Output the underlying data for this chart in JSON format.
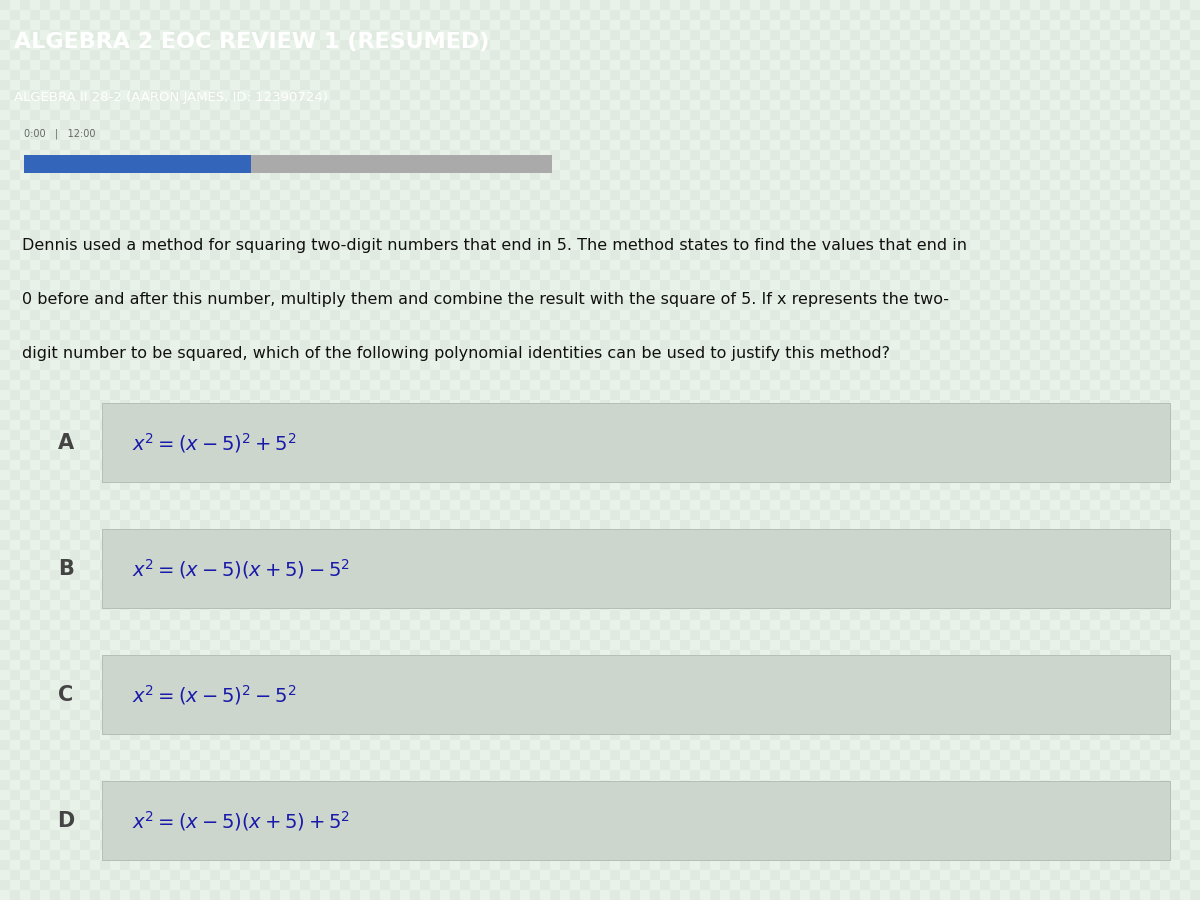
{
  "title": "ALGEBRA 2 EOC REVIEW 1 (RESUMED)",
  "subtitle": "ALGEBRA II 28-2 (AARON JAMES, ID: 12390724)",
  "header_bg_color": "#4a8a4a",
  "header_text_color": "#ffffff",
  "body_bg_color": "#dde8dd",
  "option_bg_color": "#ccd6cc",
  "label_color": "#444444",
  "formula_color": "#1a1aaa",
  "question_text_color": "#111111",
  "progress_bar_color": "#3366bb",
  "progress_bar_bg": "#aaaaaa",
  "progress_bar_fill": 0.43,
  "options": [
    {
      "label": "A",
      "formula": "$x^2 = (x-5)^2 + 5^2$"
    },
    {
      "label": "B",
      "formula": "$x^2 = (x-5)(x+5) - 5^2$"
    },
    {
      "label": "C",
      "formula": "$x^2 = (x-5)^2 - 5^2$"
    },
    {
      "label": "D",
      "formula": "$x^2 = (x-5)(x+5) + 5^2$"
    }
  ],
  "question_lines": [
    "Dennis used a method for squaring two-digit numbers that end in 5. The method states to find the values that end in",
    "0 before and after this number, multiply them and combine the result with the square of 5. If x represents the two-",
    "digit number to be squared, which of the following polynomial identities can be used to justify this method?"
  ]
}
